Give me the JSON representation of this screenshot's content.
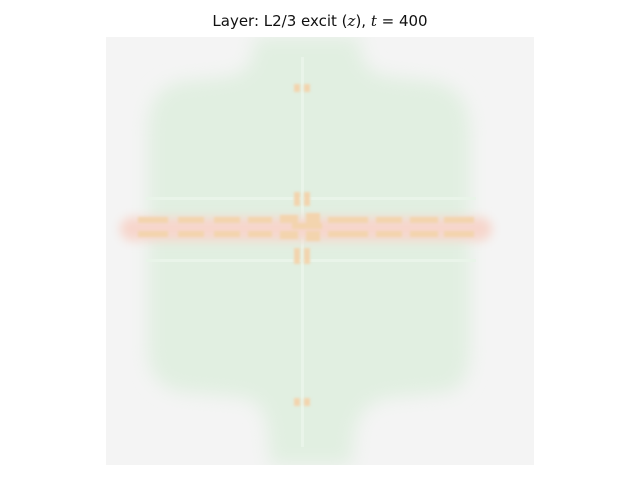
{
  "title": {
    "prefix": "Layer: L2/3 excit (",
    "variable": "z",
    "mid": "), ",
    "time_symbol": "t",
    "equals": " = ",
    "time_value": "400"
  },
  "colors": {
    "background": "#f4f4f4",
    "activity_region": "#e1efe1",
    "activity_line": "#e9f4e9",
    "hotspot_orange": "#f3d4ae",
    "hotspot_red": "#f7d6cc"
  }
}
